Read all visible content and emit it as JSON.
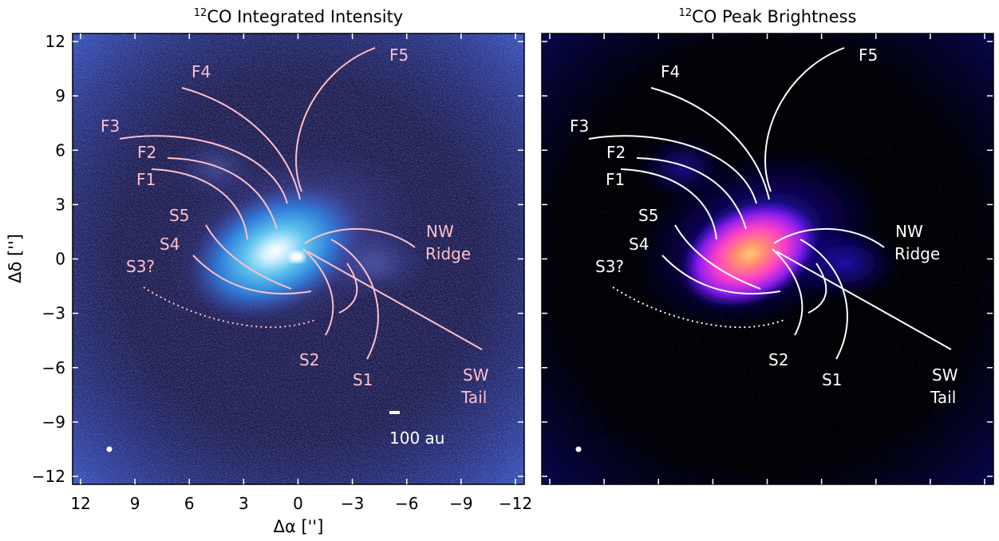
{
  "panels": [
    {
      "title_sup": "12",
      "title_rest": "CO Integrated Intensity",
      "colormap": "blue",
      "overlay_color": "#ffc0cb",
      "labels": {
        "F1": "F1",
        "F2": "F2",
        "F3": "F3",
        "F4": "F4",
        "F5": "F5",
        "S1": "S1",
        "S2": "S2",
        "S3": "S3?",
        "S4": "S4",
        "S5": "S5",
        "NW1": "NW",
        "NW2": "Ridge",
        "SW1": "SW",
        "SW2": "Tail"
      },
      "scalebar_label": "100 au"
    },
    {
      "title_sup": "12",
      "title_rest": "CO Peak Brightness",
      "colormap": "magma",
      "overlay_color": "#ffffff",
      "labels": {
        "F1": "F1",
        "F2": "F2",
        "F3": "F3",
        "F4": "F4",
        "F5": "F5",
        "S1": "S1",
        "S2": "S2",
        "S3": "S3?",
        "S4": "S4",
        "S5": "S5",
        "NW1": "NW",
        "NW2": "Ridge",
        "SW1": "SW",
        "SW2": "Tail"
      }
    }
  ],
  "axes": {
    "xlabel": "Δα ['']",
    "ylabel": "Δδ ['']",
    "xticks": [
      "12",
      "9",
      "6",
      "3",
      "0",
      "−3",
      "−6",
      "−9",
      "−12"
    ],
    "yticks": [
      "12",
      "9",
      "6",
      "3",
      "0",
      "−3",
      "−6",
      "−9",
      "−12"
    ]
  }
}
